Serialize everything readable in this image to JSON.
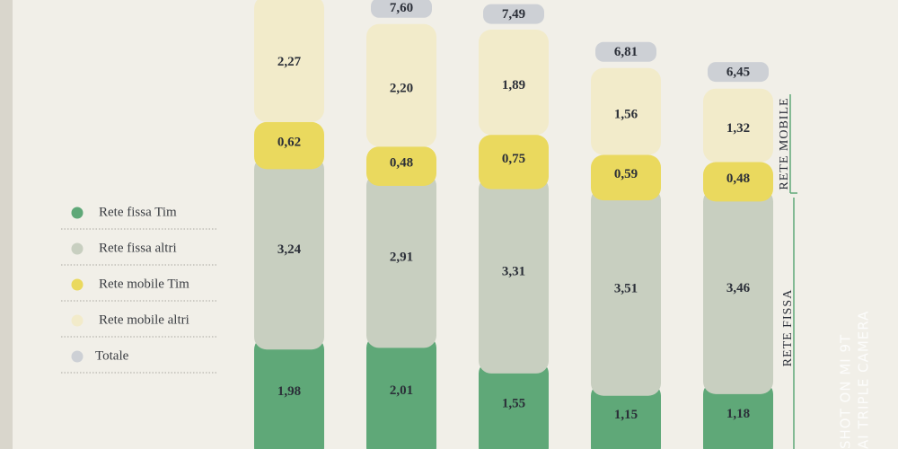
{
  "chart_data": {
    "type": "bar",
    "stacked": true,
    "categories": [
      null,
      null,
      null,
      null,
      null
    ],
    "series": [
      {
        "name": "Rete fissa Tim",
        "color": "#5fa878",
        "values": [
          1.98,
          2.01,
          1.55,
          1.15,
          1.18
        ],
        "value_labels": [
          "1,98",
          "2,01",
          "1,55",
          "1,15",
          "1,18"
        ]
      },
      {
        "name": "Rete fissa altri",
        "color": "#c8cfc0",
        "values": [
          3.24,
          2.91,
          3.31,
          3.51,
          3.46
        ],
        "value_labels": [
          "3,24",
          "2,91",
          "3,31",
          "3,51",
          "3,46"
        ]
      },
      {
        "name": "Rete mobile Tim",
        "color": "#ead95e",
        "values": [
          0.62,
          0.48,
          0.75,
          0.59,
          0.48
        ],
        "value_labels": [
          "0,62",
          "0,48",
          "0,75",
          "0,59",
          "0,48"
        ]
      },
      {
        "name": "Rete mobile altri",
        "color": "#f2ebca",
        "values": [
          2.27,
          2.2,
          1.89,
          1.56,
          1.32
        ],
        "value_labels": [
          "2,27",
          "2,20",
          "1,89",
          "1,56",
          "1,32"
        ]
      },
      {
        "name": "Totale",
        "color": "#cdd0d5",
        "values": [
          null,
          7.6,
          7.49,
          6.81,
          6.45
        ],
        "value_labels": [
          null,
          "7,60",
          "7,49",
          "6,81",
          "6,45"
        ]
      }
    ],
    "group_labels": [
      "RETE MOBILE",
      "RETE FISSA"
    ],
    "watermark": [
      "SHOT ON MI 9T",
      "AI TRIPLE CAMERA"
    ]
  }
}
